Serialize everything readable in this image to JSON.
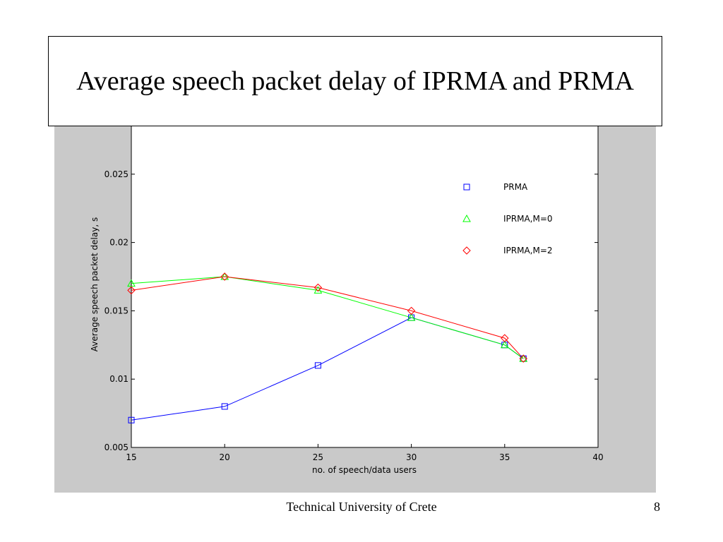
{
  "slide": {
    "title": "Average speech packet delay of IPRMA and PRMA",
    "footer": "Technical University of Crete",
    "page_number": "8"
  },
  "chart_data": {
    "type": "line",
    "title": "",
    "xlabel": "no. of speech/data users",
    "ylabel": "Average speech packet delay, s",
    "xlim": [
      15,
      40
    ],
    "ylim": [
      0.005,
      0.03
    ],
    "xticks": [
      15,
      20,
      25,
      30,
      35,
      40
    ],
    "xtick_labels": [
      "15",
      "20",
      "25",
      "30",
      "35",
      "40"
    ],
    "yticks": [
      0.005,
      0.01,
      0.015,
      0.02,
      0.025
    ],
    "ytick_labels": [
      "0.005",
      "0.01",
      "0.015",
      "0.02",
      "0.025"
    ],
    "grid": false,
    "legend_position": "top-right",
    "series": [
      {
        "name": "PRMA",
        "color": "#0000ff",
        "marker": "square",
        "x": [
          15,
          20,
          25,
          30,
          35,
          36
        ],
        "y": [
          0.007,
          0.008,
          0.011,
          0.0145,
          0.0125,
          0.0115
        ]
      },
      {
        "name": "IPRMA,M=0",
        "color": "#00ff00",
        "marker": "triangle",
        "x": [
          15,
          20,
          25,
          30,
          35,
          36
        ],
        "y": [
          0.017,
          0.0175,
          0.0165,
          0.0145,
          0.0125,
          0.0115
        ]
      },
      {
        "name": "IPRMA,M=2",
        "color": "#ff0000",
        "marker": "diamond",
        "x": [
          15,
          20,
          25,
          30,
          35,
          36
        ],
        "y": [
          0.0165,
          0.0175,
          0.0167,
          0.015,
          0.013,
          0.0115
        ]
      }
    ]
  }
}
